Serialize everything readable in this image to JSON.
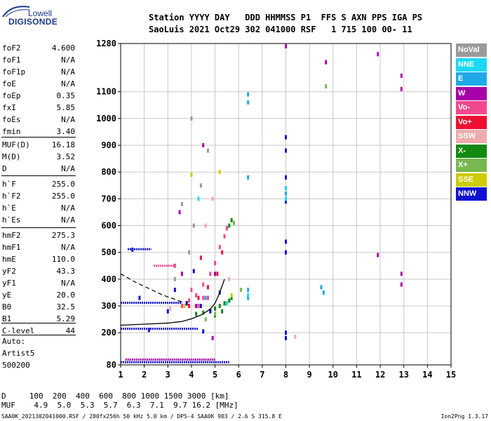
{
  "logo": {
    "line1": "Lowell",
    "line2": "DIGISONDE"
  },
  "header": {
    "row1": "Station YYYY DAY   DDD HHMMSS P1  FFS S AXN PPS IGA PS",
    "row2": "SaoLuis 2021 Oct29 302 041000 RSF   1 715 100 00- 11"
  },
  "params": [
    {
      "label": "foF2",
      "value": "4.600"
    },
    {
      "label": "foF1",
      "value": "N/A"
    },
    {
      "label": "foF1p",
      "value": "N/A"
    },
    {
      "label": "foE",
      "value": "N/A"
    },
    {
      "label": "foEp",
      "value": "0.35"
    },
    {
      "label": "fxI",
      "value": "5.85"
    },
    {
      "label": "foEs",
      "value": "N/A"
    },
    {
      "label": "fmin",
      "value": "3.40"
    },
    {
      "label": "MUF(D)",
      "value": "16.18"
    },
    {
      "label": "M(D)",
      "value": "3.52"
    },
    {
      "label": "D",
      "value": "N/A"
    },
    {
      "label": "h`F",
      "value": "255.0"
    },
    {
      "label": "h`F2",
      "value": "255.0"
    },
    {
      "label": "h`E",
      "value": "N/A"
    },
    {
      "label": "h`Es",
      "value": "N/A"
    },
    {
      "label": "hmF2",
      "value": "275.3"
    },
    {
      "label": "hmF1",
      "value": "N/A"
    },
    {
      "label": "hmE",
      "value": "110.0"
    },
    {
      "label": "yF2",
      "value": "43.3"
    },
    {
      "label": "yF1",
      "value": "N/A"
    },
    {
      "label": "yE",
      "value": "20.0"
    },
    {
      "label": "B0",
      "value": "32.5"
    },
    {
      "label": "B1",
      "value": "5.29"
    },
    {
      "label": "C-level",
      "value": "44"
    }
  ],
  "autoscale": {
    "line1": "Auto:",
    "line2": "Artist5",
    "line3": "500200"
  },
  "legend": [
    {
      "label": "NoVal",
      "color": "#9a9a9a"
    },
    {
      "label": "NNE",
      "color": "#19d9f5"
    },
    {
      "label": "E",
      "color": "#20a8e8"
    },
    {
      "label": "W",
      "color": "#a800a8"
    },
    {
      "label": "Vo-",
      "color": "#f2498e"
    },
    {
      "label": "Vo+",
      "color": "#ee1133"
    },
    {
      "label": "SSW",
      "color": "#f0aaaa"
    },
    {
      "label": "X-",
      "color": "#128a12"
    },
    {
      "label": "X+",
      "color": "#78b850"
    },
    {
      "label": "SSE",
      "color": "#cccc00"
    },
    {
      "label": "NNW",
      "color": "#1010d0"
    }
  ],
  "muf_table": {
    "row_d": "D     100  200  400  600  800 1000 1500 3000 [km]",
    "row_muf": "MUF    4.9  5.0  5.3  5.7  6.3  7.1  9.7 16.2 [MHz]"
  },
  "footer": {
    "left": "SAA0K_2021302041000.RSF / 280fx256h 50 kHz 5.0 km / DPS-4 SAA0K 903 / 2.6 S 315.8 E",
    "right": "Ion2Png 1.3.17"
  },
  "chart_data": {
    "type": "scatter",
    "title": "",
    "xlabel": "",
    "ylabel": "",
    "xlim": [
      1,
      15
    ],
    "ylim": [
      80,
      1280
    ],
    "x_ticks": [
      1,
      2,
      3,
      4,
      5,
      6,
      7,
      8,
      9,
      10,
      11,
      12,
      13,
      14,
      15
    ],
    "y_ticks": [
      80,
      200,
      300,
      400,
      500,
      600,
      700,
      800,
      900,
      1000,
      1100,
      1280
    ],
    "grid": true,
    "series": [
      {
        "name": "X-",
        "color": "#128a12",
        "points": [
          [
            4.2,
            270
          ],
          [
            4.5,
            275
          ],
          [
            4.8,
            282
          ],
          [
            5.0,
            290
          ],
          [
            5.2,
            300
          ],
          [
            5.4,
            310
          ],
          [
            5.6,
            320
          ],
          [
            5.7,
            330
          ],
          [
            5.6,
            600
          ],
          [
            5.5,
            590
          ],
          [
            5.7,
            620
          ],
          [
            5.0,
            265
          ],
          [
            5.3,
            280
          ]
        ]
      },
      {
        "name": "Vo-",
        "color": "#f2498e",
        "points": [
          [
            3.6,
            300
          ],
          [
            3.9,
            320
          ],
          [
            4.2,
            340
          ],
          [
            4.5,
            380
          ],
          [
            4.8,
            420
          ],
          [
            5.0,
            460
          ],
          [
            5.2,
            520
          ],
          [
            5.4,
            560
          ],
          [
            5.5,
            590
          ],
          [
            4.3,
            300
          ],
          [
            4.7,
            330
          ],
          [
            3.3,
            450
          ],
          [
            4.5,
            330
          ],
          [
            4.0,
            360
          ]
        ]
      },
      {
        "name": "Vo+",
        "color": "#ee1133",
        "points": [
          [
            3.9,
            300
          ],
          [
            4.3,
            330
          ],
          [
            4.7,
            370
          ],
          [
            5.1,
            420
          ],
          [
            5.3,
            500
          ],
          [
            4.4,
            480
          ],
          [
            3.8,
            310
          ]
        ]
      },
      {
        "name": "W",
        "color": "#a800a8",
        "points": [
          [
            8.0,
            1270
          ],
          [
            9.7,
            1210
          ],
          [
            11.9,
            1240
          ],
          [
            12.9,
            1160
          ],
          [
            12.9,
            1110
          ],
          [
            12.9,
            420
          ],
          [
            12.9,
            380
          ],
          [
            11.9,
            490
          ],
          [
            4.5,
            900
          ],
          [
            3.5,
            650
          ],
          [
            4.2,
            300
          ],
          [
            5.0,
            420
          ],
          [
            3.6,
            420
          ],
          [
            4.9,
            180
          ]
        ]
      },
      {
        "name": "NNW",
        "color": "#1010d0",
        "points": [
          [
            8.0,
            930
          ],
          [
            8.0,
            880
          ],
          [
            8.0,
            780
          ],
          [
            8.0,
            690
          ],
          [
            8.0,
            540
          ],
          [
            8.0,
            500
          ],
          [
            8.0,
            200
          ],
          [
            8.0,
            180
          ],
          [
            3.8,
            310
          ],
          [
            4.4,
            300
          ],
          [
            4.8,
            280
          ],
          [
            3.3,
            360
          ],
          [
            4.1,
            430
          ],
          [
            3.0,
            280
          ],
          [
            2.2,
            210
          ],
          [
            1.8,
            330
          ],
          [
            1.5,
            510
          ],
          [
            5.2,
            350
          ],
          [
            4.5,
            205
          ]
        ]
      },
      {
        "name": "E",
        "color": "#20a8e8",
        "points": [
          [
            6.4,
            1090
          ],
          [
            6.4,
            1060
          ],
          [
            6.4,
            360
          ],
          [
            6.4,
            330
          ],
          [
            8.0,
            720
          ],
          [
            9.5,
            370
          ],
          [
            9.6,
            350
          ],
          [
            6.4,
            780
          ],
          [
            4.6,
            330
          ]
        ]
      },
      {
        "name": "NNE",
        "color": "#19d9f5",
        "points": [
          [
            8.0,
            700
          ],
          [
            8.0,
            740
          ],
          [
            6.4,
            340
          ],
          [
            5.5,
            310
          ],
          [
            4.3,
            700
          ]
        ]
      },
      {
        "name": "X+",
        "color": "#78b850",
        "points": [
          [
            9.7,
            1120
          ],
          [
            5.8,
            610
          ],
          [
            5.0,
            270
          ],
          [
            6.1,
            360
          ],
          [
            4.6,
            250
          ]
        ]
      },
      {
        "name": "SSE",
        "color": "#cccc00",
        "points": [
          [
            5.7,
            340
          ],
          [
            4.0,
            790
          ],
          [
            5.2,
            800
          ],
          [
            3.7,
            300
          ]
        ]
      },
      {
        "name": "SSW",
        "color": "#f0aaaa",
        "points": [
          [
            8.4,
            185
          ],
          [
            5.6,
            400
          ],
          [
            4.9,
            700
          ],
          [
            3.1,
            290
          ],
          [
            4.6,
            600
          ]
        ]
      },
      {
        "name": "NoVal",
        "color": "#9a9a9a",
        "points": [
          [
            3.9,
            500
          ],
          [
            4.1,
            600
          ],
          [
            4.4,
            750
          ],
          [
            3.3,
            400
          ],
          [
            4.0,
            1000
          ],
          [
            3.6,
            680
          ],
          [
            4.7,
            880
          ]
        ]
      }
    ],
    "horizontal_traces": [
      {
        "y": 215,
        "x_start": 1.0,
        "x_end": 4.3,
        "color": "#1010d0"
      },
      {
        "y": 312,
        "x_start": 1.0,
        "x_end": 3.6,
        "color": "#1010d0"
      },
      {
        "y": 450,
        "x_start": 2.4,
        "x_end": 3.3,
        "color": "#f2498e"
      },
      {
        "y": 90,
        "x_start": 1.0,
        "x_end": 5.6,
        "color": "#1010d0"
      },
      {
        "y": 100,
        "x_start": 1.2,
        "x_end": 5.0,
        "color": "#a800a8"
      },
      {
        "y": 512,
        "x_start": 1.3,
        "x_end": 2.3,
        "color": "#1010d0"
      }
    ],
    "profile_curve": [
      [
        1.0,
        228
      ],
      [
        2.0,
        232
      ],
      [
        3.0,
        236
      ],
      [
        3.6,
        242
      ],
      [
        4.0,
        252
      ],
      [
        4.4,
        266
      ],
      [
        4.8,
        288
      ],
      [
        5.0,
        310
      ],
      [
        5.2,
        350
      ],
      [
        5.4,
        400
      ]
    ],
    "dashed_curve": [
      [
        1.0,
        420
      ],
      [
        1.6,
        390
      ],
      [
        2.2,
        365
      ],
      [
        2.8,
        340
      ],
      [
        3.2,
        328
      ],
      [
        3.6,
        315
      ]
    ]
  }
}
